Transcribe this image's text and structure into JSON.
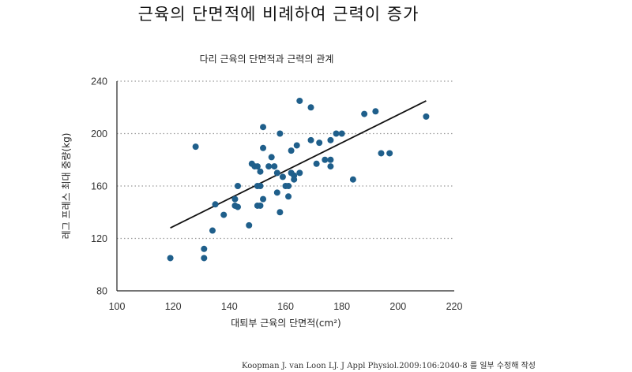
{
  "header": {
    "title": "근육의 단면적에 비례하여 근력이 증가",
    "subtitle": "다리 근육의 단면적과 근력의 관계"
  },
  "footer": {
    "source": "Koopman J. van Loon LJ. J Appl Physiol.2009:106:2040-8 를 일부 수정해 작성"
  },
  "chart_data": {
    "type": "scatter",
    "title": "다리 근육의 단면적과 근력의 관계",
    "xlabel": "대퇴부 근육의 단면적(cm²)",
    "ylabel": "레그 프레스 최대 중량(kg)",
    "xlim": [
      100,
      220
    ],
    "ylim": [
      80,
      240
    ],
    "xticks": [
      100,
      120,
      140,
      160,
      180,
      200,
      220
    ],
    "yticks": [
      80,
      120,
      160,
      200,
      240
    ],
    "grid": "horizontal dotted",
    "point_color": "#1f5f8b",
    "trend_line": {
      "x": [
        119,
        210
      ],
      "y": [
        128,
        225
      ],
      "color": "#111111"
    },
    "points": [
      {
        "x": 119,
        "y": 105
      },
      {
        "x": 128,
        "y": 190
      },
      {
        "x": 131,
        "y": 112
      },
      {
        "x": 131,
        "y": 105
      },
      {
        "x": 134,
        "y": 126
      },
      {
        "x": 135,
        "y": 146
      },
      {
        "x": 138,
        "y": 138
      },
      {
        "x": 142,
        "y": 145
      },
      {
        "x": 142,
        "y": 150
      },
      {
        "x": 143,
        "y": 144
      },
      {
        "x": 143,
        "y": 160
      },
      {
        "x": 147,
        "y": 130
      },
      {
        "x": 148,
        "y": 177
      },
      {
        "x": 149,
        "y": 175
      },
      {
        "x": 150,
        "y": 145
      },
      {
        "x": 150,
        "y": 160
      },
      {
        "x": 150,
        "y": 175
      },
      {
        "x": 151,
        "y": 171
      },
      {
        "x": 151,
        "y": 145
      },
      {
        "x": 151,
        "y": 160
      },
      {
        "x": 152,
        "y": 150
      },
      {
        "x": 152,
        "y": 189
      },
      {
        "x": 152,
        "y": 205
      },
      {
        "x": 154,
        "y": 175
      },
      {
        "x": 155,
        "y": 182
      },
      {
        "x": 156,
        "y": 175
      },
      {
        "x": 157,
        "y": 170
      },
      {
        "x": 157,
        "y": 155
      },
      {
        "x": 158,
        "y": 140
      },
      {
        "x": 158,
        "y": 200
      },
      {
        "x": 159,
        "y": 167
      },
      {
        "x": 160,
        "y": 160
      },
      {
        "x": 161,
        "y": 160
      },
      {
        "x": 161,
        "y": 152
      },
      {
        "x": 162,
        "y": 170
      },
      {
        "x": 162,
        "y": 187
      },
      {
        "x": 163,
        "y": 168
      },
      {
        "x": 163,
        "y": 165
      },
      {
        "x": 164,
        "y": 191
      },
      {
        "x": 165,
        "y": 225
      },
      {
        "x": 165,
        "y": 170
      },
      {
        "x": 169,
        "y": 195
      },
      {
        "x": 169,
        "y": 220
      },
      {
        "x": 171,
        "y": 177
      },
      {
        "x": 172,
        "y": 193
      },
      {
        "x": 174,
        "y": 180
      },
      {
        "x": 176,
        "y": 180
      },
      {
        "x": 176,
        "y": 175
      },
      {
        "x": 176,
        "y": 195
      },
      {
        "x": 178,
        "y": 200
      },
      {
        "x": 180,
        "y": 200
      },
      {
        "x": 184,
        "y": 165
      },
      {
        "x": 188,
        "y": 215
      },
      {
        "x": 192,
        "y": 217
      },
      {
        "x": 194,
        "y": 185
      },
      {
        "x": 197,
        "y": 185
      },
      {
        "x": 210,
        "y": 213
      }
    ]
  }
}
